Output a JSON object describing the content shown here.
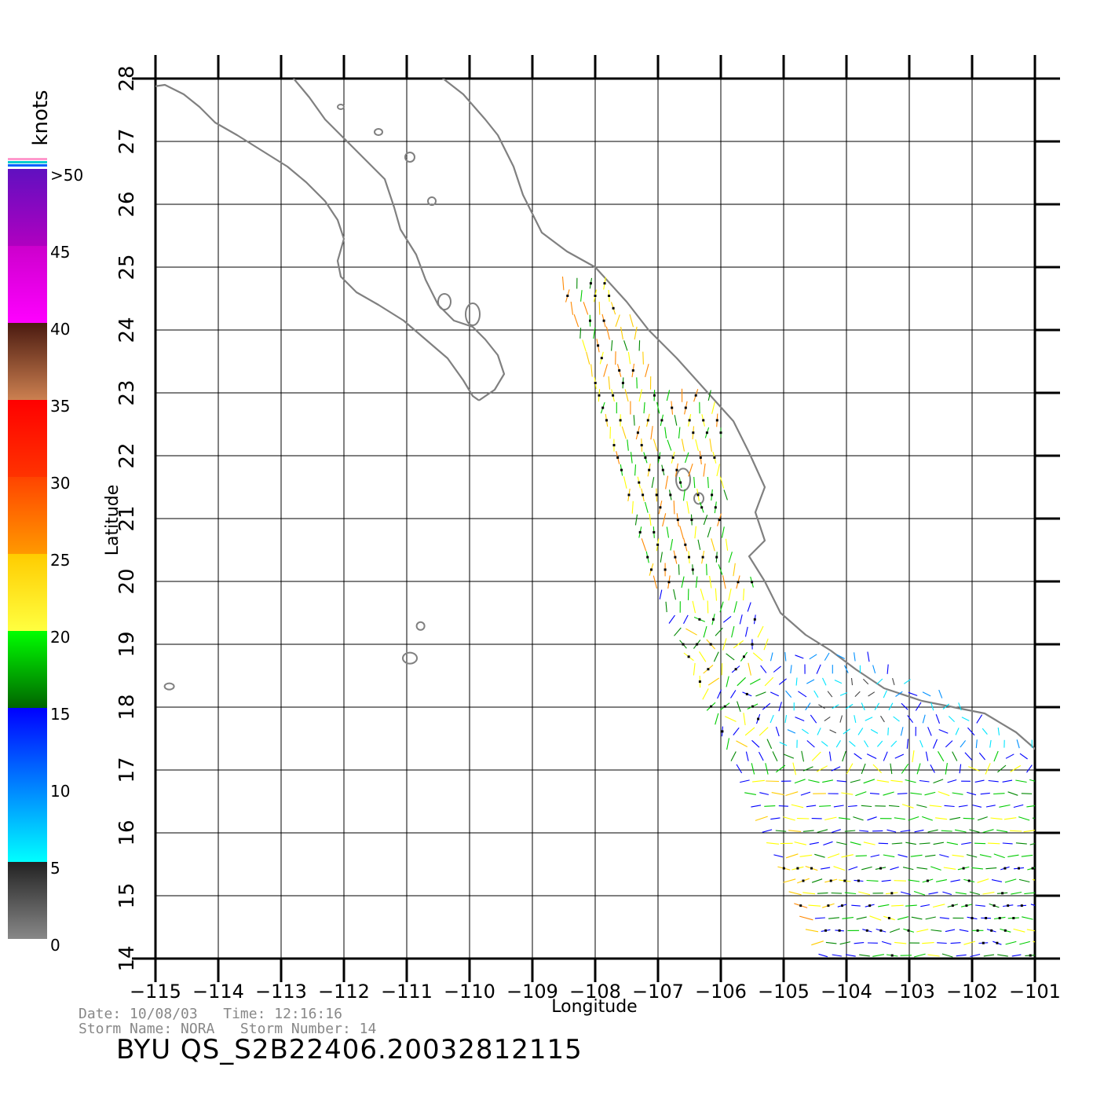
{
  "map": {
    "region": "Gulf of California / Mexican Pacific coast",
    "longitude_range": [
      -115,
      -100.5
    ],
    "latitude_range": [
      14,
      28
    ],
    "lon_ticks": [
      -115,
      -114,
      -113,
      -112,
      -111,
      -110,
      -109,
      -108,
      -107,
      -106,
      -105,
      -104,
      -103,
      -102,
      -101
    ],
    "lon_tick_labels": [
      "−115",
      "−114",
      "−113",
      "−112",
      "−111",
      "−110",
      "−109",
      "−108",
      "−107",
      "−106",
      "−105",
      "−104",
      "−103",
      "−102",
      "−101"
    ],
    "lat_ticks": [
      14,
      15,
      16,
      17,
      18,
      19,
      20,
      21,
      22,
      23,
      24,
      25,
      26,
      27,
      28
    ],
    "lat_tick_labels": [
      "14",
      "15",
      "16",
      "17",
      "18",
      "19",
      "20",
      "21",
      "22",
      "23",
      "24",
      "25",
      "26",
      "27",
      "28"
    ],
    "x_label": "Longitude",
    "y_label": "Latitude",
    "grid": true,
    "coastline_color": "#808080",
    "grid_color": "#000000"
  },
  "colorbar": {
    "title": "knots",
    "labels": [
      ">50",
      "45",
      "40",
      "35",
      "30",
      "25",
      "20",
      "15",
      "10",
      "5",
      "0"
    ],
    "segments": [
      {
        "from": 0,
        "to": 5,
        "colors": [
          "#888888",
          "#222222"
        ]
      },
      {
        "from": 5,
        "to": 10,
        "colors": [
          "#00ffff",
          "#0080ff"
        ]
      },
      {
        "from": 10,
        "to": 15,
        "colors": [
          "#0080ff",
          "#0000ff"
        ]
      },
      {
        "from": 15,
        "to": 20,
        "colors": [
          "#006400",
          "#00ff00"
        ]
      },
      {
        "from": 20,
        "to": 25,
        "colors": [
          "#ffff40",
          "#ffcc00"
        ]
      },
      {
        "from": 25,
        "to": 30,
        "colors": [
          "#ff9900",
          "#ff4400"
        ]
      },
      {
        "from": 30,
        "to": 35,
        "colors": [
          "#ff3300",
          "#ff0000"
        ]
      },
      {
        "from": 35,
        "to": 40,
        "colors": [
          "#cc8050",
          "#4a1a10"
        ]
      },
      {
        "from": 40,
        "to": 45,
        "colors": [
          "#ff00ff",
          "#cc00cc"
        ]
      },
      {
        "from": 45,
        "to": 50,
        "colors": [
          "#b000c0",
          "#6010c0"
        ]
      }
    ],
    "cap_colors": [
      "#ff99cc",
      "#00cccc",
      "#0060ff"
    ]
  },
  "info": {
    "date_line": "Date: 10/08/03   Time: 12:16:16",
    "storm_line": "Storm Name: NORA   Storm Number: 14",
    "product_id": "BYU  QS_S2B22406.20032812115"
  }
}
